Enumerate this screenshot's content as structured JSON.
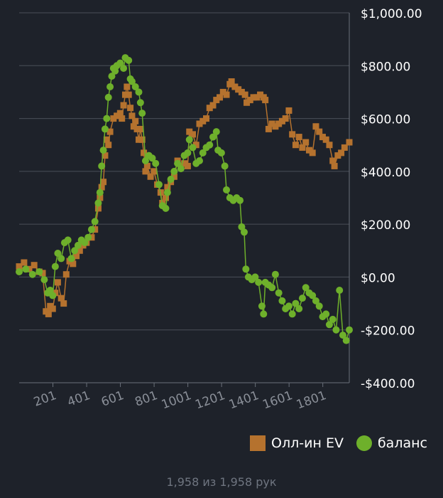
{
  "chart_data": {
    "type": "line",
    "ylim": [
      -400,
      1000
    ],
    "xlim": [
      1,
      1958
    ],
    "y_ticks": [
      1000,
      800,
      600,
      400,
      200,
      0,
      -200,
      -400
    ],
    "y_tick_labels": [
      "$1,000.00",
      "$800.00",
      "$600.00",
      "$400.00",
      "$200.00",
      "$0.00",
      "-$200.00",
      "-$400.00"
    ],
    "x_ticks": [
      201,
      401,
      601,
      801,
      1001,
      1201,
      1401,
      1601,
      1801
    ],
    "x_tick_labels": [
      "201",
      "401",
      "601",
      "801",
      "1001",
      "1201",
      "1401",
      "1601",
      "1801"
    ],
    "grid": true,
    "legend_position": "bottom-right",
    "series": [
      {
        "name": "Олл-ин EV",
        "color": "#b5722e",
        "marker": "square",
        "points": [
          [
            1,
            40
          ],
          [
            30,
            55
          ],
          [
            60,
            30
          ],
          [
            90,
            45
          ],
          [
            120,
            20
          ],
          [
            140,
            15
          ],
          [
            160,
            -130
          ],
          [
            175,
            -140
          ],
          [
            185,
            -110
          ],
          [
            200,
            -120
          ],
          [
            215,
            -60
          ],
          [
            230,
            -20
          ],
          [
            250,
            -80
          ],
          [
            265,
            -100
          ],
          [
            280,
            10
          ],
          [
            300,
            60
          ],
          [
            320,
            50
          ],
          [
            340,
            80
          ],
          [
            360,
            100
          ],
          [
            380,
            120
          ],
          [
            400,
            130
          ],
          [
            430,
            150
          ],
          [
            450,
            180
          ],
          [
            470,
            260
          ],
          [
            480,
            300
          ],
          [
            490,
            340
          ],
          [
            500,
            360
          ],
          [
            510,
            460
          ],
          [
            520,
            520
          ],
          [
            530,
            500
          ],
          [
            540,
            550
          ],
          [
            560,
            600
          ],
          [
            580,
            610
          ],
          [
            600,
            620
          ],
          [
            610,
            600
          ],
          [
            620,
            650
          ],
          [
            630,
            690
          ],
          [
            640,
            720
          ],
          [
            650,
            690
          ],
          [
            660,
            640
          ],
          [
            670,
            610
          ],
          [
            680,
            570
          ],
          [
            690,
            590
          ],
          [
            700,
            560
          ],
          [
            710,
            520
          ],
          [
            720,
            560
          ],
          [
            730,
            520
          ],
          [
            740,
            470
          ],
          [
            750,
            400
          ],
          [
            760,
            420
          ],
          [
            780,
            380
          ],
          [
            800,
            400
          ],
          [
            820,
            350
          ],
          [
            840,
            320
          ],
          [
            850,
            280
          ],
          [
            870,
            300
          ],
          [
            880,
            340
          ],
          [
            900,
            360
          ],
          [
            920,
            380
          ],
          [
            940,
            440
          ],
          [
            960,
            420
          ],
          [
            980,
            430
          ],
          [
            1000,
            420
          ],
          [
            1010,
            550
          ],
          [
            1030,
            540
          ],
          [
            1050,
            500
          ],
          [
            1070,
            580
          ],
          [
            1090,
            590
          ],
          [
            1110,
            600
          ],
          [
            1130,
            640
          ],
          [
            1150,
            650
          ],
          [
            1170,
            670
          ],
          [
            1190,
            680
          ],
          [
            1210,
            700
          ],
          [
            1230,
            690
          ],
          [
            1250,
            730
          ],
          [
            1260,
            740
          ],
          [
            1280,
            720
          ],
          [
            1300,
            710
          ],
          [
            1320,
            700
          ],
          [
            1340,
            690
          ],
          [
            1350,
            660
          ],
          [
            1370,
            670
          ],
          [
            1390,
            680
          ],
          [
            1410,
            680
          ],
          [
            1430,
            690
          ],
          [
            1450,
            680
          ],
          [
            1460,
            670
          ],
          [
            1480,
            560
          ],
          [
            1500,
            580
          ],
          [
            1520,
            570
          ],
          [
            1540,
            580
          ],
          [
            1560,
            590
          ],
          [
            1580,
            600
          ],
          [
            1600,
            630
          ],
          [
            1620,
            540
          ],
          [
            1640,
            500
          ],
          [
            1660,
            530
          ],
          [
            1680,
            490
          ],
          [
            1700,
            510
          ],
          [
            1720,
            480
          ],
          [
            1740,
            470
          ],
          [
            1760,
            570
          ],
          [
            1780,
            550
          ],
          [
            1800,
            530
          ],
          [
            1820,
            520
          ],
          [
            1840,
            500
          ],
          [
            1860,
            440
          ],
          [
            1870,
            420
          ],
          [
            1890,
            460
          ],
          [
            1910,
            470
          ],
          [
            1930,
            490
          ],
          [
            1958,
            510
          ]
        ]
      },
      {
        "name": "баланс",
        "color": "#6eb02b",
        "marker": "circle",
        "points": [
          [
            1,
            20
          ],
          [
            40,
            30
          ],
          [
            80,
            10
          ],
          [
            120,
            20
          ],
          [
            150,
            -10
          ],
          [
            170,
            -60
          ],
          [
            185,
            -50
          ],
          [
            200,
            -70
          ],
          [
            215,
            40
          ],
          [
            230,
            90
          ],
          [
            250,
            70
          ],
          [
            270,
            130
          ],
          [
            290,
            140
          ],
          [
            310,
            70
          ],
          [
            330,
            100
          ],
          [
            350,
            120
          ],
          [
            370,
            140
          ],
          [
            390,
            130
          ],
          [
            410,
            150
          ],
          [
            430,
            180
          ],
          [
            450,
            210
          ],
          [
            470,
            280
          ],
          [
            480,
            320
          ],
          [
            490,
            420
          ],
          [
            500,
            480
          ],
          [
            510,
            560
          ],
          [
            520,
            600
          ],
          [
            530,
            680
          ],
          [
            540,
            720
          ],
          [
            550,
            760
          ],
          [
            560,
            790
          ],
          [
            570,
            780
          ],
          [
            580,
            800
          ],
          [
            600,
            810
          ],
          [
            620,
            790
          ],
          [
            630,
            830
          ],
          [
            650,
            820
          ],
          [
            660,
            750
          ],
          [
            670,
            740
          ],
          [
            690,
            720
          ],
          [
            710,
            700
          ],
          [
            720,
            660
          ],
          [
            730,
            620
          ],
          [
            750,
            440
          ],
          [
            770,
            460
          ],
          [
            790,
            450
          ],
          [
            810,
            430
          ],
          [
            830,
            350
          ],
          [
            850,
            270
          ],
          [
            870,
            260
          ],
          [
            880,
            320
          ],
          [
            900,
            370
          ],
          [
            920,
            400
          ],
          [
            940,
            430
          ],
          [
            960,
            410
          ],
          [
            980,
            460
          ],
          [
            1000,
            470
          ],
          [
            1010,
            520
          ],
          [
            1030,
            490
          ],
          [
            1050,
            430
          ],
          [
            1070,
            440
          ],
          [
            1090,
            470
          ],
          [
            1110,
            490
          ],
          [
            1130,
            500
          ],
          [
            1150,
            530
          ],
          [
            1170,
            550
          ],
          [
            1180,
            480
          ],
          [
            1200,
            470
          ],
          [
            1220,
            420
          ],
          [
            1230,
            330
          ],
          [
            1250,
            300
          ],
          [
            1270,
            290
          ],
          [
            1290,
            300
          ],
          [
            1310,
            290
          ],
          [
            1320,
            190
          ],
          [
            1335,
            170
          ],
          [
            1345,
            30
          ],
          [
            1360,
            0
          ],
          [
            1380,
            -10
          ],
          [
            1400,
            0
          ],
          [
            1420,
            -20
          ],
          [
            1440,
            -110
          ],
          [
            1450,
            -140
          ],
          [
            1460,
            -20
          ],
          [
            1480,
            -30
          ],
          [
            1500,
            -40
          ],
          [
            1520,
            10
          ],
          [
            1540,
            -60
          ],
          [
            1560,
            -90
          ],
          [
            1580,
            -120
          ],
          [
            1600,
            -110
          ],
          [
            1620,
            -140
          ],
          [
            1640,
            -100
          ],
          [
            1660,
            -120
          ],
          [
            1680,
            -80
          ],
          [
            1700,
            -40
          ],
          [
            1720,
            -60
          ],
          [
            1740,
            -70
          ],
          [
            1760,
            -90
          ],
          [
            1780,
            -110
          ],
          [
            1800,
            -150
          ],
          [
            1820,
            -140
          ],
          [
            1840,
            -180
          ],
          [
            1860,
            -160
          ],
          [
            1880,
            -200
          ],
          [
            1900,
            -50
          ],
          [
            1920,
            -220
          ],
          [
            1940,
            -240
          ],
          [
            1958,
            -200
          ]
        ]
      }
    ]
  },
  "footer": {
    "hands_text": "1,958 из 1,958 рук"
  }
}
